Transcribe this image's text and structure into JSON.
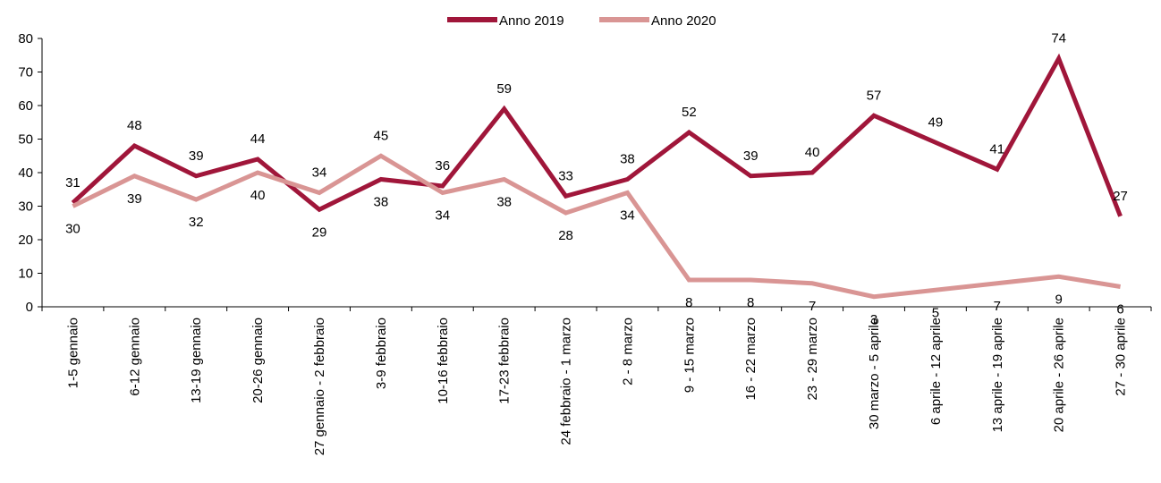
{
  "chart_data": {
    "type": "line",
    "categories": [
      "1-5 gennaio",
      "6-12 gennaio",
      "13-19 gennaio",
      "20-26 gennaio",
      "27 gennaio - 2 febbraio",
      "3-9 febbraio",
      "10-16 febbraio",
      "17-23 febbraio",
      "24 febbraio - 1 marzo",
      "2 - 8 marzo",
      "9 - 15 marzo",
      "16 - 22 marzo",
      "23 - 29 marzo",
      "30 marzo - 5 aprile",
      "6 aprile - 12 aprile",
      "13 aprile - 19 aprile",
      "20 aprile - 26 aprile",
      "27 - 30 aprile"
    ],
    "series": [
      {
        "name": "Anno 2019",
        "color": "#a0163a",
        "values": [
          31,
          48,
          39,
          44,
          29,
          38,
          36,
          59,
          33,
          38,
          52,
          39,
          40,
          57,
          49,
          41,
          74,
          27
        ]
      },
      {
        "name": "Anno 2020",
        "color": "#d99594",
        "values": [
          30,
          39,
          32,
          40,
          34,
          45,
          34,
          38,
          28,
          34,
          8,
          8,
          7,
          3,
          5,
          7,
          9,
          6
        ]
      }
    ],
    "ylim": [
      0,
      80
    ],
    "yticks": [
      0,
      10,
      20,
      30,
      40,
      50,
      60,
      70,
      80
    ],
    "legend": "top"
  }
}
